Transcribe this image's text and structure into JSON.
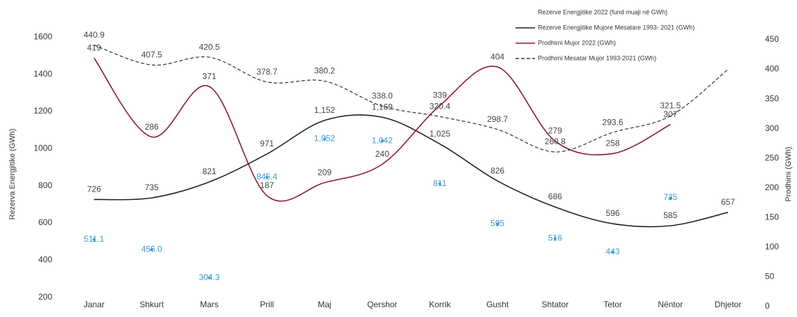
{
  "chart_data": {
    "type": "line",
    "categories": [
      "Janar",
      "Shkurt",
      "Mars",
      "Prill",
      "Maj",
      "Qershor",
      "Korrik",
      "Gusht",
      "Shtator",
      "Tetor",
      "Nëntor",
      "Dhjetor"
    ],
    "ylabel": "Rezerva Energjitike (GWh)",
    "y2label": "Prodhimi (GWh)",
    "ylim": [
      150,
      1650
    ],
    "yticks": [
      200,
      400,
      600,
      800,
      1000,
      1200,
      1400,
      1600
    ],
    "y2lim": [
      0,
      470
    ],
    "y2ticks": [
      0,
      50,
      100,
      150,
      200,
      250,
      300,
      350,
      400,
      450
    ],
    "series": [
      {
        "name": "Rezerve Energjitike  2022 (fund muaji në GWh)",
        "color": "#3a9bd5",
        "style": "points",
        "values": [
          511.1,
          456.0,
          304.3,
          845.4,
          1052,
          1042,
          811,
          595,
          516,
          443,
          735,
          null
        ],
        "value_labels": [
          "511.1",
          "456.0",
          "304.3",
          "845.4",
          "1,052",
          "1,042",
          "811",
          "595",
          "516",
          "443",
          "735",
          null
        ]
      },
      {
        "name": "Rezerve Energjitike Mujore Mesatare 1993- 2021 (GWh)",
        "color": "#222222",
        "style": "solid",
        "values": [
          726,
          735,
          821,
          971,
          1152,
          1169,
          1025,
          826,
          686,
          596,
          585,
          657
        ],
        "value_labels": [
          "726",
          "735",
          "821",
          "971",
          "1,152",
          "1,169",
          "1,025",
          "826",
          "686",
          "596",
          "585",
          "657"
        ]
      },
      {
        "name": "Prodhimi Mujor  2022 (GWh)",
        "color": "#8b1a3a",
        "style": "solid",
        "axis": "y2",
        "values": [
          419,
          286,
          371,
          187,
          209,
          240,
          339,
          404,
          279,
          258,
          307,
          null
        ],
        "value_labels": [
          "419",
          "286",
          "371",
          "187",
          "209",
          "240",
          "339",
          "404",
          "279",
          "258",
          "307",
          null
        ]
      },
      {
        "name": "Prodhimi Mesatar Mujor 1993-2021 (GWh)",
        "color": "#333333",
        "style": "dashed",
        "axis": "y2",
        "values": [
          440.9,
          407.5,
          420.5,
          378.7,
          380.2,
          338.0,
          320.4,
          298.7,
          260.8,
          293.6,
          321.5,
          400
        ],
        "value_labels": [
          "440.9",
          "407.5",
          "420.5",
          "378.7",
          "380.2",
          "338.0",
          "320.4",
          "298.7",
          "260.8",
          "293.6",
          "321.5",
          null
        ]
      }
    ]
  }
}
